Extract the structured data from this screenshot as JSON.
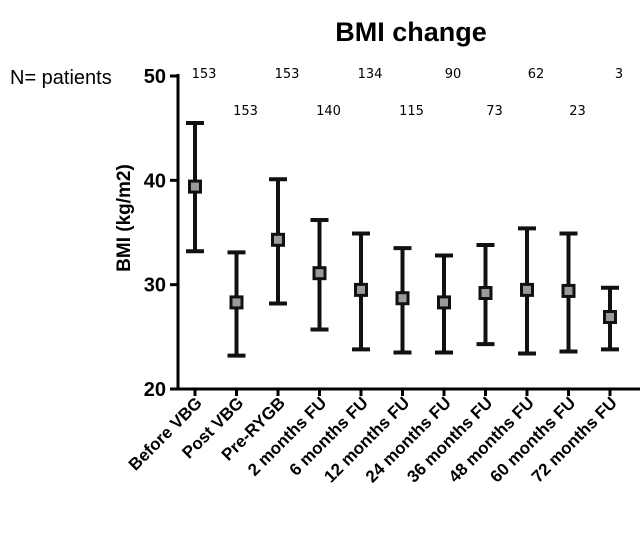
{
  "chart_data": {
    "type": "errorbar",
    "title": "BMI change",
    "ylabel": "BMI (kg/m2)",
    "xlabel": "",
    "ylim": [
      20,
      50
    ],
    "yticks": [
      20,
      30,
      40,
      50
    ],
    "n_label": "N= patients",
    "categories": [
      "Before VBG",
      "Post VBG",
      "Pre-RYGB",
      "2 months FU",
      "6 months FU",
      "12 months FU",
      "24 months FU",
      "36 months FU",
      "48 months FU",
      "60 months FU",
      "72 months FU"
    ],
    "n": [
      "153",
      "153",
      "153",
      "140",
      "134",
      "115",
      "90",
      "73",
      "62",
      "23",
      "3"
    ],
    "mean": [
      39.4,
      28.3,
      34.3,
      31.1,
      29.5,
      28.7,
      28.3,
      29.2,
      29.5,
      29.4,
      26.9
    ],
    "upper": [
      45.5,
      33.1,
      40.1,
      36.2,
      34.9,
      33.5,
      32.8,
      33.8,
      35.4,
      34.9,
      29.7
    ],
    "lower": [
      33.2,
      23.2,
      28.2,
      25.7,
      23.8,
      23.5,
      23.5,
      24.3,
      23.4,
      23.6,
      23.8
    ],
    "marker_color": "#9a9a9a",
    "grid": false,
    "legend": "none"
  }
}
